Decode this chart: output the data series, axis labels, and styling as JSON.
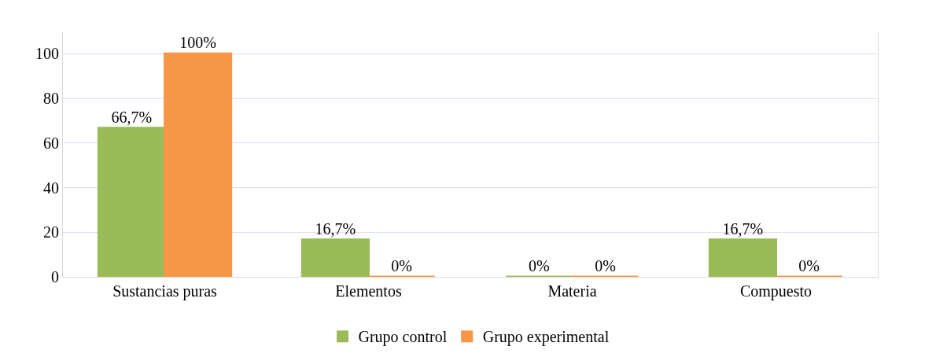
{
  "chart_data": {
    "type": "bar",
    "categories": [
      "Sustancias puras",
      "Elementos",
      "Materia",
      "Compuesto"
    ],
    "series": [
      {
        "name": "Grupo control",
        "color": "#9bbb59",
        "values": [
          66.7,
          16.7,
          0,
          16.7
        ],
        "value_labels": [
          "66,7%",
          "16,7%",
          "0%",
          "16,7%"
        ]
      },
      {
        "name": "Grupo experimental",
        "color": "#f79646",
        "values": [
          100,
          0,
          0,
          0
        ],
        "value_labels": [
          "100%",
          "0%",
          "0%",
          "0%"
        ]
      }
    ],
    "ylim": [
      0,
      110
    ],
    "yticks": [
      0,
      20,
      40,
      60,
      80,
      100
    ],
    "grid": "y",
    "legend": "bottom"
  }
}
